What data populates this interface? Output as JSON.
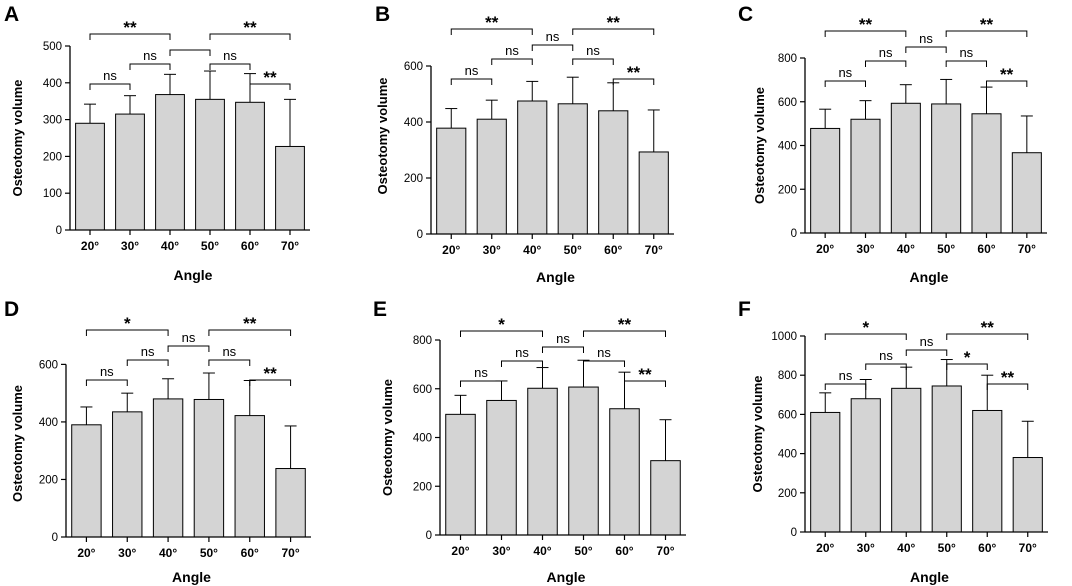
{
  "chart_data": [
    {
      "type": "bar",
      "panel": "A",
      "categories": [
        "20°",
        "30°",
        "40°",
        "50°",
        "60°",
        "70°"
      ],
      "values": [
        290,
        315,
        368,
        355,
        347,
        227
      ],
      "errors": [
        52,
        50,
        55,
        77,
        78,
        128
      ],
      "ylim": [
        0,
        500
      ],
      "yticks": [
        "0",
        "100",
        "200",
        "300",
        "400",
        "500"
      ],
      "ytick_values": [
        0,
        100,
        200,
        300,
        400,
        500
      ],
      "xlabel": "Angle",
      "ylabel": "Osteotomy volume",
      "comparisons": [
        {
          "from": 0,
          "to": 1,
          "label": "ns"
        },
        {
          "from": 1,
          "to": 2,
          "label": "ns"
        },
        {
          "from": 0,
          "to": 2,
          "label": "**"
        },
        {
          "from": 2,
          "to": 3,
          "label": ""
        },
        {
          "from": 3,
          "to": 4,
          "label": "ns"
        },
        {
          "from": 4,
          "to": 5,
          "label": "**"
        },
        {
          "from": 3,
          "to": 5,
          "label": "**"
        }
      ]
    },
    {
      "type": "bar",
      "panel": "B",
      "categories": [
        "20°",
        "30°",
        "40°",
        "50°",
        "60°",
        "70°"
      ],
      "values": [
        378,
        410,
        475,
        465,
        440,
        293
      ],
      "errors": [
        70,
        68,
        70,
        95,
        100,
        150
      ],
      "ylim": [
        0,
        700
      ],
      "yticks": [
        "0",
        "200",
        "400",
        "600"
      ],
      "ytick_values": [
        0,
        200,
        400,
        600
      ],
      "xlabel": "Angle",
      "ylabel": "Osteotomy volume",
      "comparisons": [
        {
          "from": 0,
          "to": 1,
          "label": "ns"
        },
        {
          "from": 1,
          "to": 2,
          "label": "ns"
        },
        {
          "from": 0,
          "to": 2,
          "label": "**"
        },
        {
          "from": 2,
          "to": 3,
          "label": "ns"
        },
        {
          "from": 3,
          "to": 4,
          "label": "ns"
        },
        {
          "from": 4,
          "to": 5,
          "label": "**"
        },
        {
          "from": 3,
          "to": 5,
          "label": "**"
        }
      ]
    },
    {
      "type": "bar",
      "panel": "C",
      "categories": [
        "20°",
        "30°",
        "40°",
        "50°",
        "60°",
        "70°"
      ],
      "values": [
        478,
        520,
        593,
        590,
        545,
        367
      ],
      "errors": [
        88,
        85,
        85,
        112,
        122,
        168
      ],
      "ylim": [
        0,
        800
      ],
      "yticks": [
        "0",
        "200",
        "400",
        "600",
        "800"
      ],
      "ytick_values": [
        0,
        200,
        400,
        600,
        800
      ],
      "xlabel": "Angle",
      "ylabel": "Osteotomy volume",
      "comparisons": [
        {
          "from": 0,
          "to": 1,
          "label": "ns"
        },
        {
          "from": 1,
          "to": 2,
          "label": "ns"
        },
        {
          "from": 0,
          "to": 2,
          "label": "**"
        },
        {
          "from": 2,
          "to": 3,
          "label": "ns"
        },
        {
          "from": 3,
          "to": 4,
          "label": "ns"
        },
        {
          "from": 4,
          "to": 5,
          "label": "**"
        },
        {
          "from": 3,
          "to": 5,
          "label": "**"
        }
      ]
    },
    {
      "type": "bar",
      "panel": "D",
      "categories": [
        "20°",
        "30°",
        "40°",
        "50°",
        "60°",
        "70°"
      ],
      "values": [
        390,
        435,
        480,
        478,
        422,
        238
      ],
      "errors": [
        62,
        65,
        70,
        92,
        122,
        148
      ],
      "ylim": [
        0,
        650
      ],
      "yticks": [
        "0",
        "200",
        "400",
        "600"
      ],
      "ytick_values": [
        0,
        200,
        400,
        600
      ],
      "xlabel": "Angle",
      "ylabel": "Osteotomy volume",
      "comparisons": [
        {
          "from": 0,
          "to": 1,
          "label": "ns"
        },
        {
          "from": 1,
          "to": 2,
          "label": "ns"
        },
        {
          "from": 0,
          "to": 2,
          "label": "*"
        },
        {
          "from": 2,
          "to": 3,
          "label": "ns"
        },
        {
          "from": 3,
          "to": 4,
          "label": "ns"
        },
        {
          "from": 4,
          "to": 5,
          "label": "**"
        },
        {
          "from": 3,
          "to": 5,
          "label": "**"
        }
      ]
    },
    {
      "type": "bar",
      "panel": "E",
      "categories": [
        "20°",
        "30°",
        "40°",
        "50°",
        "60°",
        "70°"
      ],
      "values": [
        495,
        552,
        602,
        607,
        518,
        305
      ],
      "errors": [
        78,
        80,
        85,
        110,
        150,
        168
      ],
      "ylim": [
        0,
        800
      ],
      "yticks": [
        "0",
        "200",
        "400",
        "600",
        "800"
      ],
      "ytick_values": [
        0,
        200,
        400,
        600,
        800
      ],
      "xlabel": "Angle",
      "ylabel": "Osteotomy volume",
      "comparisons": [
        {
          "from": 0,
          "to": 1,
          "label": "ns"
        },
        {
          "from": 1,
          "to": 2,
          "label": "ns"
        },
        {
          "from": 0,
          "to": 2,
          "label": "*"
        },
        {
          "from": 2,
          "to": 3,
          "label": "ns"
        },
        {
          "from": 3,
          "to": 4,
          "label": "ns"
        },
        {
          "from": 4,
          "to": 5,
          "label": "**"
        },
        {
          "from": 3,
          "to": 5,
          "label": "**"
        }
      ]
    },
    {
      "type": "bar",
      "panel": "F",
      "categories": [
        "20°",
        "30°",
        "40°",
        "50°",
        "60°",
        "70°"
      ],
      "values": [
        610,
        680,
        733,
        745,
        620,
        380
      ],
      "errors": [
        100,
        98,
        108,
        135,
        180,
        185
      ],
      "ylim": [
        0,
        1000
      ],
      "yticks": [
        "0",
        "200",
        "400",
        "600",
        "800",
        "1000"
      ],
      "ytick_values": [
        0,
        200,
        400,
        600,
        800,
        1000
      ],
      "xlabel": "Angle",
      "ylabel": "Osteotomy volume",
      "comparisons": [
        {
          "from": 0,
          "to": 1,
          "label": "ns"
        },
        {
          "from": 1,
          "to": 2,
          "label": "ns"
        },
        {
          "from": 0,
          "to": 2,
          "label": "*"
        },
        {
          "from": 2,
          "to": 3,
          "label": "ns"
        },
        {
          "from": 3,
          "to": 4,
          "label": "*"
        },
        {
          "from": 4,
          "to": 5,
          "label": "**"
        },
        {
          "from": 3,
          "to": 5,
          "label": "**"
        }
      ]
    }
  ]
}
